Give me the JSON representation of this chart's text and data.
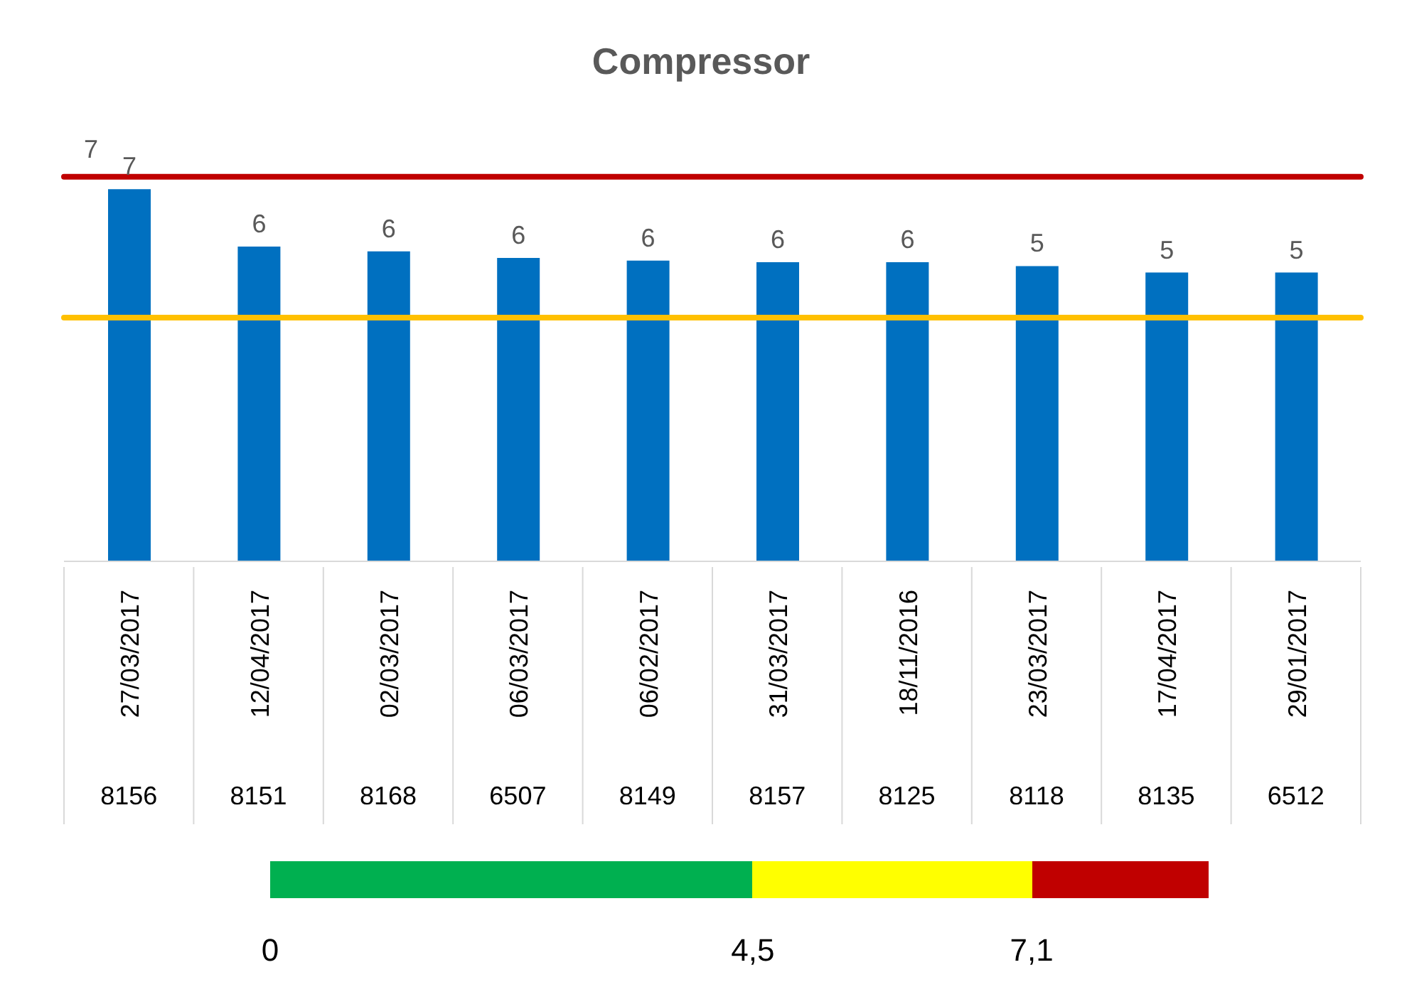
{
  "chart_data": {
    "type": "bar",
    "title": "Compressor",
    "categories": [
      "27/03/2017",
      "12/04/2017",
      "02/03/2017",
      "06/03/2017",
      "06/02/2017",
      "31/03/2017",
      "18/11/2016",
      "23/03/2017",
      "17/04/2017",
      "29/01/2017"
    ],
    "values": [
      6.87,
      5.81,
      5.72,
      5.6,
      5.55,
      5.52,
      5.52,
      5.45,
      5.33,
      5.33
    ],
    "value_labels": [
      "7",
      "6",
      "6",
      "6",
      "6",
      "6",
      "6",
      "5",
      "5",
      "5"
    ],
    "color": "#0070c0",
    "tick_labels": "x",
    "grid": false,
    "legend": false,
    "ref_lines": [
      {
        "axis": "y",
        "value": 7.1,
        "label": "7",
        "color": "#c00000"
      },
      {
        "axis": "y",
        "value": 4.5,
        "color": "#ffc000"
      }
    ],
    "annotations": [
      "8156",
      "8151",
      "8168",
      "6507",
      "8149",
      "8157",
      "8125",
      "8118",
      "8135",
      "6512",
      "0",
      "4,5",
      "7,1"
    ]
  }
}
